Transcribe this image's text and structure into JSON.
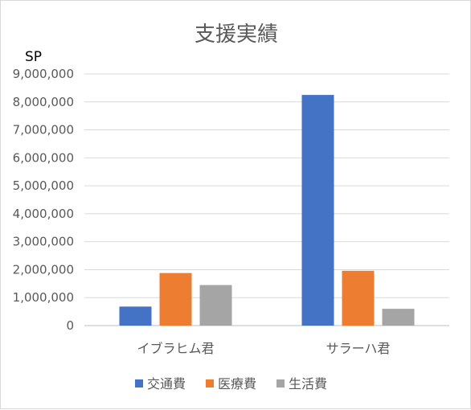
{
  "chart_data": {
    "type": "bar",
    "title": "支援実績",
    "ylabel": "SP",
    "xlabel": "",
    "categories": [
      "イブラヒム君",
      "サラーハ君"
    ],
    "series": [
      {
        "name": "交通費",
        "color": "#4472c4",
        "values": [
          680000,
          8250000
        ]
      },
      {
        "name": "医療費",
        "color": "#ed7d31",
        "values": [
          1880000,
          1960000
        ]
      },
      {
        "name": "生活費",
        "color": "#a5a5a5",
        "values": [
          1450000,
          600000
        ]
      }
    ],
    "ylim": [
      0,
      9000000
    ],
    "yticks": [
      0,
      1000000,
      2000000,
      3000000,
      4000000,
      5000000,
      6000000,
      7000000,
      8000000,
      9000000
    ],
    "ytick_labels": [
      "0",
      "1,000,000",
      "2,000,000",
      "3,000,000",
      "4,000,000",
      "5,000,000",
      "6,000,000",
      "7,000,000",
      "8,000,000",
      "9,000,000"
    ],
    "grid": true,
    "legend": "bottom"
  }
}
